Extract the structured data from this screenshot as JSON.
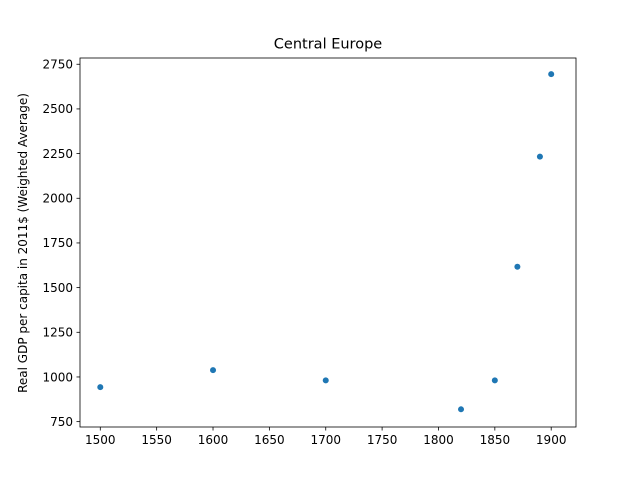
{
  "chart_data": {
    "type": "scatter",
    "title": "Central Europe",
    "xlabel": "",
    "ylabel": "Real GDP per capita in 2011$ (Weighted Average)",
    "xlim": [
      1482,
      1922
    ],
    "ylim": [
      720,
      2785
    ],
    "xticks": [
      1500,
      1550,
      1600,
      1650,
      1700,
      1750,
      1800,
      1850,
      1900
    ],
    "yticks": [
      750,
      1000,
      1250,
      1500,
      1750,
      2000,
      2250,
      2500,
      2750
    ],
    "grid": false,
    "legend": "none",
    "marker_color": "#1f77b4",
    "series": [
      {
        "x": [
          1500,
          1600,
          1700,
          1820,
          1850,
          1870,
          1890,
          1900
        ],
        "y": [
          943,
          1038,
          981,
          819,
          981,
          1617,
          2233,
          2695
        ]
      }
    ]
  }
}
